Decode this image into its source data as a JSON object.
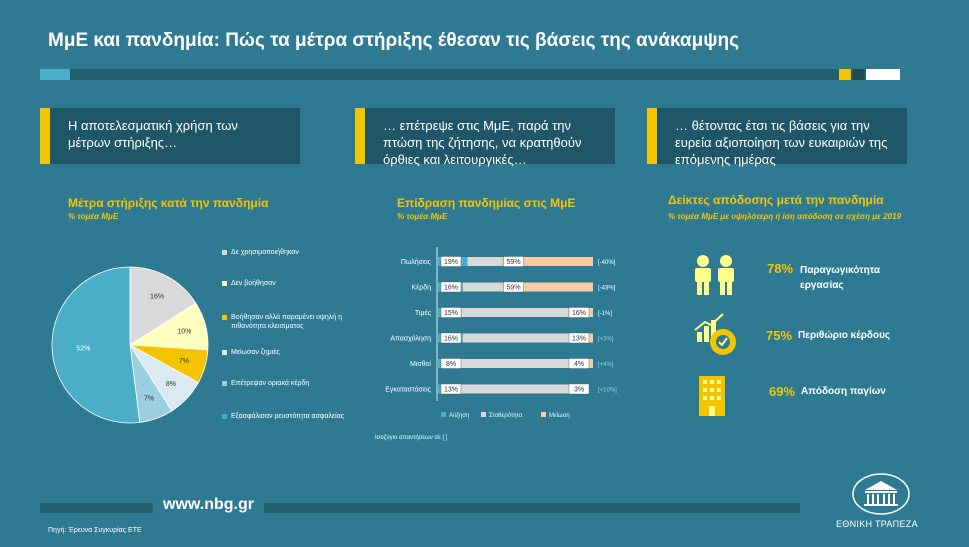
{
  "header": {
    "title": "ΜμΕ και πανδημία: Πώς τα μέτρα στήριξης έθεσαν τις βάσεις της ανάκαμψης"
  },
  "panels": [
    {
      "text": "Η αποτελεσματική χρήση των μέτρων στήριξης…"
    },
    {
      "text": "… επέτρεψε στις ΜμΕ, παρά την πτώση της ζήτησης, να κρατηθούν όρθιες και λειτουργικές…"
    },
    {
      "text": "… θέτοντας έτσι τις βάσεις για την ευρεία αξιοποίηση των ευκαιριών της επόμενης ημέρας"
    }
  ],
  "colors": {
    "background": "#2f7a93",
    "accent": "#f5c400",
    "panel": "#205768"
  },
  "chart_data": [
    {
      "type": "pie",
      "title": "Μέτρα στήριξης κατά την πανδημία",
      "subtitle": "% τομέα ΜμΕ",
      "categories": [
        "Δε χρησιμοποιήθηκαν",
        "Δεν βοήθησαν",
        "Βοήθησαν αλλά παραμένει υψηλή η πιθανότητα κλεισίματος",
        "Μείωσαν ζημιές",
        "Επέτρεψαν οριακά κέρδη",
        "Εξασφάλισαν ρευστότητα ασφαλείας"
      ],
      "values": [
        16,
        10,
        7,
        8,
        7,
        52
      ],
      "labels": [
        "16%",
        "10%",
        "7%",
        "8%",
        "7%",
        "52%"
      ],
      "colors": [
        "#d9d9d9",
        "#ffffc0",
        "#f5c400",
        "#dbe9f1",
        "#9ccfde",
        "#4aaec8"
      ],
      "legend": "right"
    },
    {
      "type": "bar",
      "title": "Επίδραση πανδημίας στις ΜμΕ",
      "subtitle": "% τομέα ΜμΕ",
      "categories": [
        "Πωλήσεις",
        "Κέρδη",
        "Τιμές",
        "Απασχόληση",
        "Μισθοί",
        "Εγκαταστάσεις"
      ],
      "series": [
        {
          "name": "Αύξηση",
          "values": [
            19,
            16,
            15,
            16,
            8,
            13
          ],
          "color": "#4aaec8"
        },
        {
          "name": "Σταθερότητα",
          "values": [
            22,
            25,
            69,
            71,
            88,
            74
          ],
          "color": "#d9d9d9"
        },
        {
          "name": "Μείωση",
          "values": [
            59,
            59,
            16,
            13,
            4,
            3
          ],
          "color": "#f8cba6"
        }
      ],
      "increase_labels": [
        "19%",
        "16%",
        "15%",
        "16%",
        "8%",
        "13%"
      ],
      "decrease_labels": [
        "59%",
        "59%",
        "16%",
        "13%",
        "4%",
        "3%"
      ],
      "balance_labels": [
        "[-40%]",
        "[-43%]",
        "[-1%]",
        "[+3%]",
        "[+4%]",
        "[+10%]"
      ],
      "balance_colors": [
        "#ffffff",
        "#ffffff",
        "#ffffff",
        "#8fd3e6",
        "#8fd3e6",
        "#8fd3e6"
      ],
      "note": "Ισοζύγιο απαντήσεων σε [ ]",
      "legend": "bottom"
    }
  ],
  "kpis": {
    "title": "Δείκτες απόδοσης μετά την πανδημία",
    "subtitle": "% τομέα ΜμΕ με υψηλότερη ή ίση απόδοση σε σχέση με 2019",
    "items": [
      {
        "value": "78%",
        "label": "Παραγωγικότητα εργασίας",
        "icon": "workers-icon"
      },
      {
        "value": "75%",
        "label": "Περιθώριο κέρδους",
        "icon": "profit-gear-icon"
      },
      {
        "value": "69%",
        "label": "Απόδοση παγίων",
        "icon": "building-icon"
      }
    ]
  },
  "footer": {
    "url": "www.nbg.gr",
    "source": "Πηγή: Έρευνα Συγκυρίας ΕΤΕ",
    "bank_name": "ΕΘΝΙΚΗ ΤΡΑΠΕΖΑ"
  }
}
